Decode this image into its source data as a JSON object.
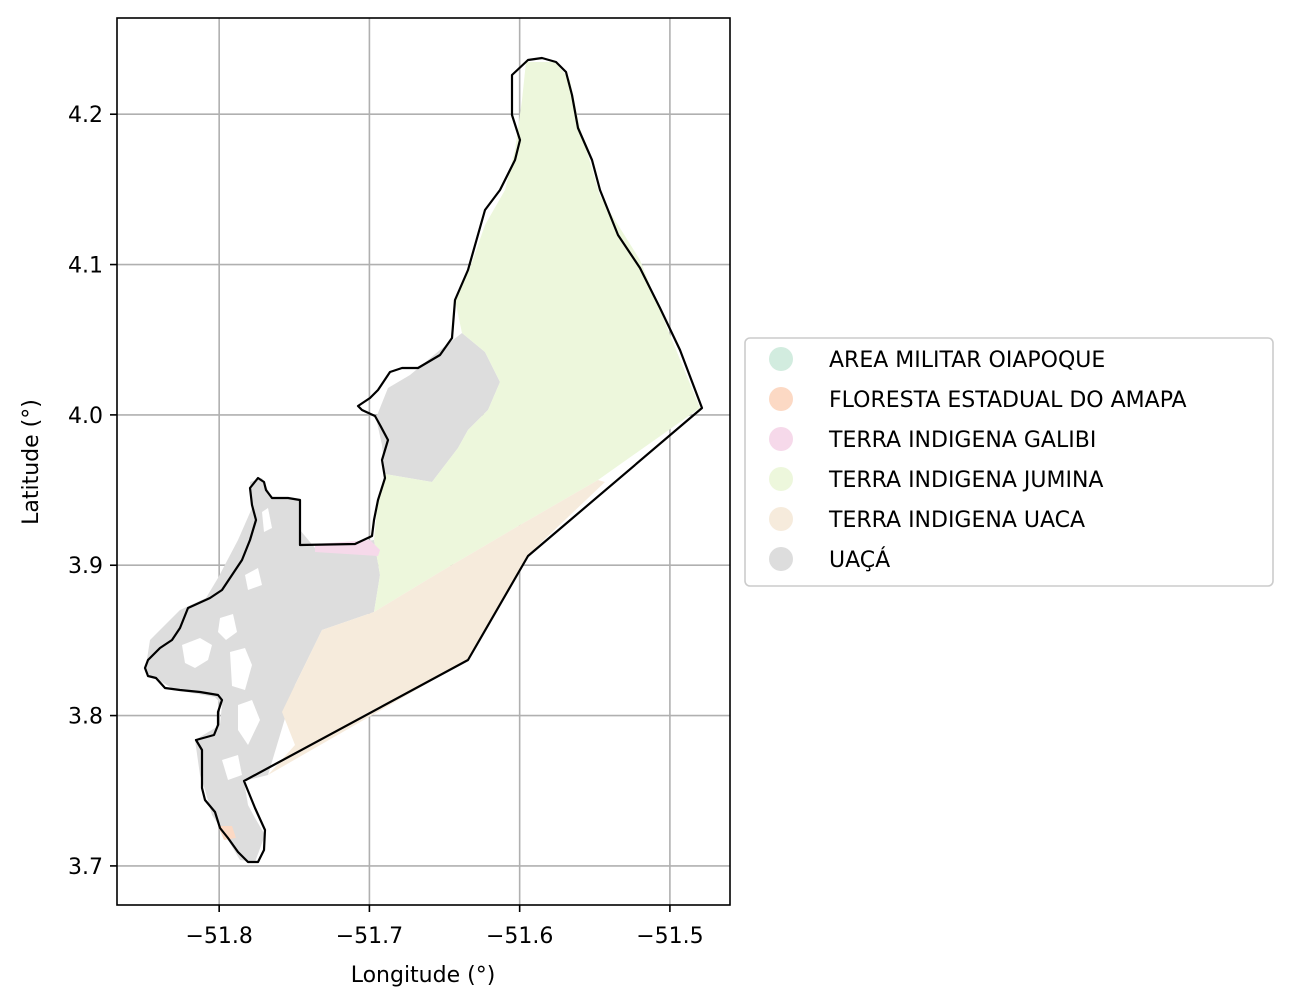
{
  "chart_data": {
    "type": "map",
    "xlabel": "Longitude (°)",
    "ylabel": "Latitude (°)",
    "xlim": [
      -51.868,
      -51.46
    ],
    "ylim": [
      3.674,
      4.264
    ],
    "xticks": [
      -51.8,
      -51.7,
      -51.6,
      -51.5
    ],
    "xtick_labels": [
      "−51.8",
      "−51.7",
      "−51.6",
      "−51.5"
    ],
    "yticks": [
      3.7,
      3.8,
      3.9,
      4.0,
      4.1,
      4.2
    ],
    "ytick_labels": [
      "3.7",
      "3.8",
      "3.9",
      "4.0",
      "4.1",
      "4.2"
    ],
    "grid": true,
    "legend_position": "right",
    "legend": [
      {
        "label": "AREA MILITAR OIAPOQUE",
        "color": "#d2ecdf"
      },
      {
        "label": "FLORESTA ESTADUAL DO AMAPA",
        "color": "#fcd9c4"
      },
      {
        "label": "TERRA INDIGENA GALIBI",
        "color": "#f6d9ea"
      },
      {
        "label": "TERRA INDIGENA JUMINA",
        "color": "#edf7dc"
      },
      {
        "label": "TERRA INDIGENA UACA",
        "color": "#f6ebdc"
      },
      {
        "label": "UAÇÁ",
        "color": "#dddddd"
      }
    ]
  }
}
